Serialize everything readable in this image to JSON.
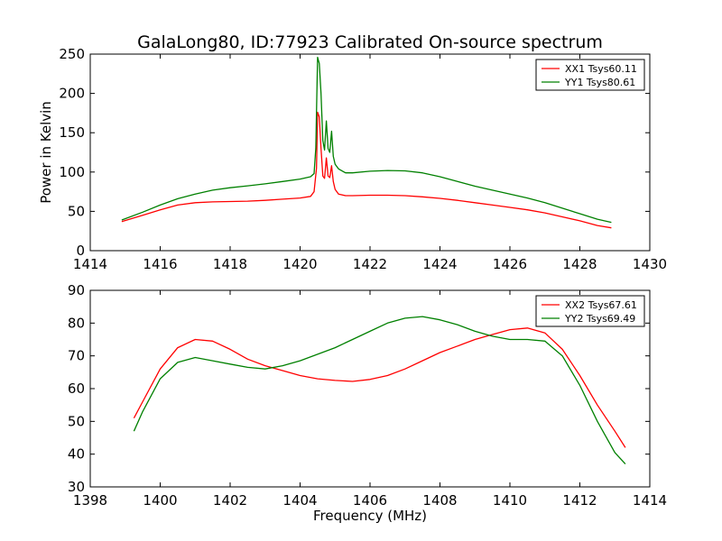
{
  "title": "GalaLong80, ID:77923 Calibrated On-source spectrum",
  "chart_data": [
    {
      "type": "line",
      "ylabel": "Power in Kelvin",
      "xlabel": "",
      "xlim": [
        1414,
        1430
      ],
      "ylim": [
        0,
        250
      ],
      "xticks": [
        1414,
        1416,
        1418,
        1420,
        1422,
        1424,
        1426,
        1428,
        1430
      ],
      "yticks": [
        0,
        50,
        100,
        150,
        200,
        250
      ],
      "legend_position": "top-right",
      "series": [
        {
          "name": "XX1 Tsys60.11",
          "color": "#ff0000",
          "x": [
            1414.9,
            1415.5,
            1416.0,
            1416.5,
            1417.0,
            1417.5,
            1418.0,
            1418.5,
            1419.0,
            1419.5,
            1420.0,
            1420.3,
            1420.4,
            1420.47,
            1420.5,
            1420.55,
            1420.6,
            1420.65,
            1420.7,
            1420.75,
            1420.8,
            1420.85,
            1420.9,
            1420.95,
            1421.0,
            1421.1,
            1421.3,
            1421.5,
            1422.0,
            1422.5,
            1423.0,
            1423.5,
            1424.0,
            1424.5,
            1425.0,
            1425.5,
            1426.0,
            1426.5,
            1427.0,
            1427.5,
            1428.0,
            1428.5,
            1428.9
          ],
          "y": [
            37,
            45,
            52,
            58,
            61,
            62,
            62.5,
            63,
            64,
            65.5,
            67,
            69,
            75,
            105,
            176,
            170,
            130,
            95,
            92,
            118,
            95,
            93,
            108,
            88,
            78,
            72,
            70,
            70,
            70.5,
            70.5,
            70,
            68.5,
            66.5,
            64,
            61,
            58,
            55,
            52,
            48,
            43,
            38,
            32,
            29
          ]
        },
        {
          "name": "YY1 Tsys80.61",
          "color": "#008000",
          "x": [
            1414.9,
            1415.5,
            1416.0,
            1416.5,
            1417.0,
            1417.5,
            1418.0,
            1418.5,
            1419.0,
            1419.5,
            1420.0,
            1420.3,
            1420.4,
            1420.45,
            1420.5,
            1420.55,
            1420.6,
            1420.65,
            1420.7,
            1420.75,
            1420.8,
            1420.85,
            1420.9,
            1420.95,
            1421.0,
            1421.1,
            1421.3,
            1421.5,
            1422.0,
            1422.5,
            1423.0,
            1423.5,
            1424.0,
            1424.5,
            1425.0,
            1425.5,
            1426.0,
            1426.5,
            1427.0,
            1427.5,
            1428.0,
            1428.5,
            1428.9
          ],
          "y": [
            39,
            49,
            58,
            66,
            72,
            77,
            80,
            82.5,
            85,
            88,
            91,
            94,
            98,
            130,
            246,
            238,
            200,
            140,
            128,
            165,
            130,
            125,
            152,
            120,
            110,
            104,
            99,
            99,
            101,
            102,
            101.5,
            99,
            94,
            88,
            82,
            77,
            72,
            67,
            61,
            54,
            47,
            40,
            36
          ]
        }
      ]
    },
    {
      "type": "line",
      "ylabel": "",
      "xlabel": "Frequency (MHz)",
      "xlim": [
        1398,
        1414
      ],
      "ylim": [
        30,
        90
      ],
      "xticks": [
        1398,
        1400,
        1402,
        1404,
        1406,
        1408,
        1410,
        1412,
        1414
      ],
      "yticks": [
        30,
        40,
        50,
        60,
        70,
        80,
        90
      ],
      "legend_position": "top-right",
      "series": [
        {
          "name": "XX2 Tsys67.61",
          "color": "#ff0000",
          "x": [
            1399.25,
            1399.5,
            1400.0,
            1400.5,
            1401.0,
            1401.5,
            1402.0,
            1402.5,
            1403.0,
            1403.5,
            1404.0,
            1404.5,
            1405.0,
            1405.5,
            1406.0,
            1406.5,
            1407.0,
            1407.5,
            1408.0,
            1408.5,
            1409.0,
            1409.5,
            1410.0,
            1410.5,
            1411.0,
            1411.5,
            1412.0,
            1412.5,
            1413.0,
            1413.3
          ],
          "y": [
            51,
            56,
            66,
            72.5,
            75,
            74.5,
            72,
            69,
            67,
            65.5,
            64,
            63,
            62.5,
            62.2,
            62.8,
            64,
            66,
            68.5,
            71,
            73,
            75,
            76.5,
            78,
            78.5,
            77,
            72,
            64,
            55,
            47,
            42
          ]
        },
        {
          "name": "YY2 Tsys69.49",
          "color": "#008000",
          "x": [
            1399.25,
            1399.5,
            1400.0,
            1400.5,
            1401.0,
            1401.5,
            1402.0,
            1402.5,
            1403.0,
            1403.5,
            1404.0,
            1404.5,
            1405.0,
            1405.5,
            1406.0,
            1406.5,
            1407.0,
            1407.5,
            1408.0,
            1408.5,
            1409.0,
            1409.5,
            1410.0,
            1410.5,
            1411.0,
            1411.5,
            1412.0,
            1412.5,
            1413.0,
            1413.3
          ],
          "y": [
            47,
            53,
            63,
            68,
            69.5,
            68.5,
            67.5,
            66.5,
            66,
            67,
            68.5,
            70.5,
            72.5,
            75,
            77.5,
            80,
            81.5,
            82,
            81,
            79.5,
            77.5,
            76,
            75,
            75,
            74.5,
            70,
            61,
            50,
            40.5,
            37
          ]
        }
      ]
    }
  ]
}
